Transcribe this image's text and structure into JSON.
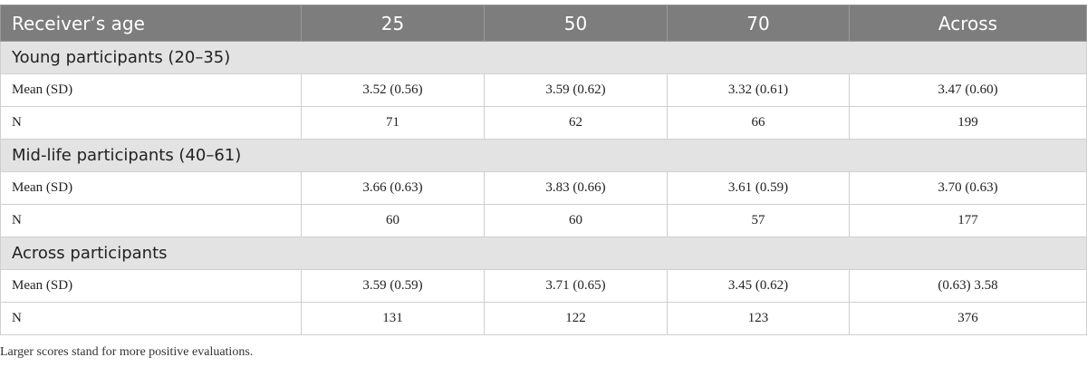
{
  "table": {
    "headers": [
      "Receiver’s age",
      "25",
      "50",
      "70",
      "Across"
    ],
    "sections": [
      {
        "title": "Young participants (20–35)",
        "rows": [
          {
            "label": "Mean (SD)",
            "values": [
              "3.52 (0.56)",
              "3.59 (0.62)",
              "3.32 (0.61)",
              "3.47 (0.60)"
            ]
          },
          {
            "label": "N",
            "values": [
              "71",
              "62",
              "66",
              "199"
            ]
          }
        ]
      },
      {
        "title": "Mid-life participants (40–61)",
        "rows": [
          {
            "label": "Mean (SD)",
            "values": [
              "3.66 (0.63)",
              "3.83 (0.66)",
              "3.61 (0.59)",
              "3.70 (0.63)"
            ]
          },
          {
            "label": "N",
            "values": [
              "60",
              "60",
              "57",
              "177"
            ]
          }
        ]
      },
      {
        "title": "Across participants",
        "rows": [
          {
            "label": "Mean (SD)",
            "values": [
              "3.59 (0.59)",
              "3.71 (0.65)",
              "3.45 (0.62)",
              "(0.63) 3.58"
            ]
          },
          {
            "label": "N",
            "values": [
              "131",
              "122",
              "123",
              "376"
            ]
          }
        ]
      }
    ]
  },
  "footnote": "Larger scores stand for more positive evaluations.",
  "colors": {
    "header_bg": "#7d7d7d",
    "section_bg": "#e3e3e3",
    "border": "#cfcfcf"
  }
}
